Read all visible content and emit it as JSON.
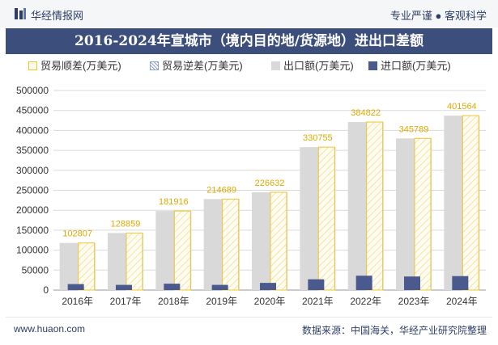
{
  "header": {
    "brand": "华经情报网",
    "tagline": "专业严谨 ● 客观科学"
  },
  "legend": {
    "surplus": "贸易顺差(万美元)",
    "deficit": "贸易逆差(万美元)",
    "export": "出口额(万美元)",
    "import": "进口额(万美元)"
  },
  "footer": {
    "website": "www.huaon.com",
    "source": "数据来源：中国海关，华经产业研究院整理"
  },
  "colors": {
    "title_bg": "#3c4e7c",
    "export": "#d9d9d9",
    "import": "#4a5a8e",
    "surplus_border": "#f0c330",
    "surplus_label": "#e0a800",
    "grid": "#d9d9d9"
  },
  "chart_data": {
    "type": "bar",
    "title": "2016-2024年宣城市（境内目的地/货源地）进出口差额",
    "categories": [
      "2016年",
      "2017年",
      "2018年",
      "2019年",
      "2020年",
      "2021年",
      "2022年",
      "2023年",
      "2024年"
    ],
    "series": [
      {
        "name": "贸易顺差(万美元)",
        "values": [
          102807,
          128859,
          181916,
          214689,
          226632,
          330755,
          384822,
          345789,
          401564
        ]
      },
      {
        "name": "贸易逆差(万美元)",
        "values": [
          0,
          0,
          0,
          0,
          0,
          0,
          0,
          0,
          0
        ]
      },
      {
        "name": "出口额(万美元)",
        "values": [
          118000,
          143000,
          198000,
          228000,
          245000,
          358000,
          421000,
          380000,
          437000
        ]
      },
      {
        "name": "进口额(万美元)",
        "values": [
          15000,
          13000,
          16000,
          13000,
          18000,
          27000,
          36000,
          34000,
          35000
        ]
      }
    ],
    "ylim": [
      0,
      500000
    ],
    "yticks": [
      0,
      50000,
      100000,
      150000,
      200000,
      250000,
      300000,
      350000,
      400000,
      450000,
      500000
    ],
    "grid": true,
    "legend_position": "top"
  }
}
